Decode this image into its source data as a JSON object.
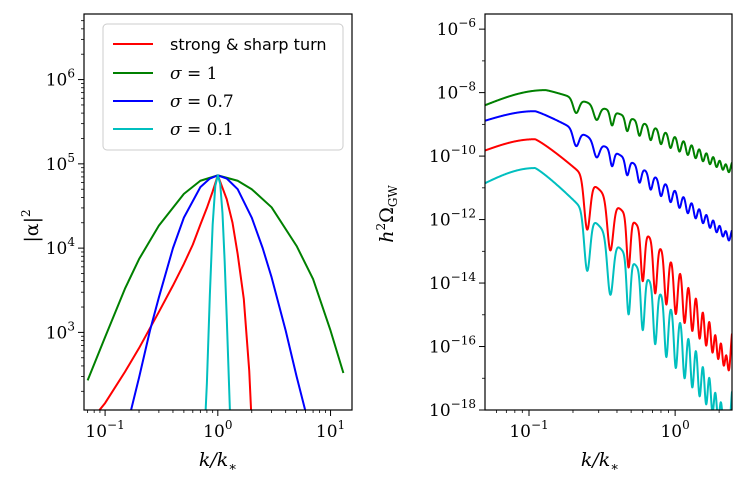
{
  "chart_data": [
    {
      "type": "line",
      "title": "",
      "xlabel": "k/k*",
      "ylabel": "|α|²",
      "xscale": "log",
      "yscale": "log",
      "xlim": [
        0.065,
        15.5
      ],
      "ylim": [
        120,
        6000000
      ],
      "x_ticks": [
        {
          "value": 0.1,
          "label": "10",
          "exp": "−1"
        },
        {
          "value": 1,
          "label": "10",
          "exp": "0"
        },
        {
          "value": 10,
          "label": "10",
          "exp": "1"
        }
      ],
      "y_ticks": [
        {
          "value": 1000,
          "label": "10",
          "exp": "3"
        },
        {
          "value": 10000,
          "label": "10",
          "exp": "4"
        },
        {
          "value": 100000,
          "label": "10",
          "exp": "5"
        },
        {
          "value": 1000000,
          "label": "10",
          "exp": "6"
        }
      ],
      "legend_position": "top-right",
      "series": [
        {
          "name": "strong & sharp turn",
          "color": "#ff0000",
          "x": [
            0.08,
            0.1,
            0.15,
            0.2,
            0.3,
            0.4,
            0.5,
            0.6,
            0.7,
            0.8,
            0.9,
            1.0,
            1.1,
            1.2,
            1.35,
            1.5,
            1.7,
            1.9,
            2.0
          ],
          "y": [
            100,
            145,
            340,
            650,
            1750,
            3600,
            6500,
            11000,
            19000,
            30000,
            47000,
            73000,
            52000,
            38000,
            20000,
            8500,
            2500,
            350,
            80
          ]
        },
        {
          "name": "σ = 1",
          "color": "#008000",
          "x": [
            0.07,
            0.1,
            0.15,
            0.2,
            0.3,
            0.5,
            0.7,
            1.0,
            1.5,
            2,
            3,
            5,
            7,
            10,
            13
          ],
          "y": [
            270,
            880,
            3300,
            7400,
            18500,
            44000,
            63000,
            73000,
            63000,
            50000,
            30500,
            10600,
            4300,
            1050,
            330
          ]
        },
        {
          "name": "σ = 0.7",
          "color": "#0000ff",
          "x": [
            0.17,
            0.2,
            0.25,
            0.3,
            0.4,
            0.5,
            0.7,
            0.85,
            1.0,
            1.2,
            1.5,
            2,
            2.5,
            3,
            4,
            5,
            6
          ],
          "y": [
            120,
            290,
            1050,
            2600,
            10000,
            23000,
            53000,
            67000,
            73000,
            67000,
            50000,
            23000,
            10000,
            4500,
            1050,
            300,
            115
          ]
        },
        {
          "name": "σ = 0.1",
          "color": "#00bfbf",
          "x": [
            0.78,
            0.8,
            0.85,
            0.9,
            0.95,
            1.0,
            1.05,
            1.1,
            1.15,
            1.2,
            1.28
          ],
          "y": [
            120,
            250,
            2800,
            19000,
            55000,
            73000,
            58000,
            26000,
            7000,
            1500,
            120
          ]
        }
      ]
    },
    {
      "type": "line",
      "title": "",
      "xlabel": "k/k*",
      "ylabel": "h²Ω_GW",
      "xscale": "log",
      "yscale": "log",
      "xlim": [
        0.05,
        2.45
      ],
      "ylim": [
        1e-18,
        3e-06
      ],
      "x_ticks": [
        {
          "value": 0.1,
          "label": "10",
          "exp": "−1"
        },
        {
          "value": 1,
          "label": "10",
          "exp": "0"
        }
      ],
      "y_ticks": [
        {
          "value": 1e-18,
          "label": "10",
          "exp": "−18"
        },
        {
          "value": 1e-16,
          "label": "10",
          "exp": "−16"
        },
        {
          "value": 1e-14,
          "label": "10",
          "exp": "−14"
        },
        {
          "value": 1e-12,
          "label": "10",
          "exp": "−12"
        },
        {
          "value": 1e-10,
          "label": "10",
          "exp": "−10"
        },
        {
          "value": 1e-08,
          "label": "10",
          "exp": "−8"
        },
        {
          "value": 1e-06,
          "label": "10",
          "exp": "−6"
        }
      ],
      "series": [
        {
          "name": "σ = 1",
          "color": "#008000",
          "peak_x": 0.13,
          "peak_y": 1.2e-08,
          "start_y": 4e-09,
          "end_y": 8e-11,
          "oscillation_depth_decades": 0.45,
          "trough_x": [
            0.21,
            0.29,
            0.37,
            0.47,
            0.57,
            0.68,
            0.8,
            0.93,
            1.07,
            1.22,
            1.38,
            1.55,
            1.73,
            1.92,
            2.12,
            2.33
          ]
        },
        {
          "name": "σ = 0.7",
          "color": "#0000ff",
          "peak_x": 0.11,
          "peak_y": 2.6e-09,
          "start_y": 1.3e-09,
          "end_y": 6e-13,
          "oscillation_depth_decades": 0.5,
          "trough_x": [
            0.21,
            0.29,
            0.37,
            0.47,
            0.57,
            0.68,
            0.8,
            0.93,
            1.07,
            1.22,
            1.38,
            1.55,
            1.73,
            1.92,
            2.12,
            2.33
          ]
        },
        {
          "name": "strong & sharp turn",
          "color": "#ff0000",
          "peak_x": 0.11,
          "peak_y": 3.4e-10,
          "start_y": 1.5e-10,
          "end_y": 6e-16,
          "oscillation_depth_decades": 1.6,
          "trough_x": [
            0.25,
            0.36,
            0.48,
            0.6,
            0.73,
            0.87,
            1.01,
            1.16,
            1.31,
            1.47,
            1.63,
            1.8,
            1.97,
            2.15,
            2.33
          ]
        },
        {
          "name": "σ = 0.1",
          "color": "#00bfbf",
          "peak_x": 0.11,
          "peak_y": 4.2e-11,
          "start_y": 1.4e-11,
          "end_y": 1e-17,
          "oscillation_depth_decades": 1.8,
          "trough_x": [
            0.25,
            0.36,
            0.48,
            0.6,
            0.73,
            0.87,
            1.01,
            1.16,
            1.31,
            1.47,
            1.63,
            1.8,
            1.97,
            2.15,
            2.33
          ]
        }
      ]
    }
  ],
  "labels": {
    "left_ylabel_base": "|α|",
    "left_ylabel_exp": "2",
    "right_ylabel_h": "h",
    "right_ylabel_exp": "2",
    "right_ylabel_omega": "Ω",
    "right_ylabel_sub": "GW",
    "xlabel_k": "k/k",
    "xlabel_star": "∗",
    "legend_prefix": "σ = ",
    "legend_values": [
      "strong & sharp turn",
      "1",
      "0.7",
      "0.1"
    ]
  }
}
